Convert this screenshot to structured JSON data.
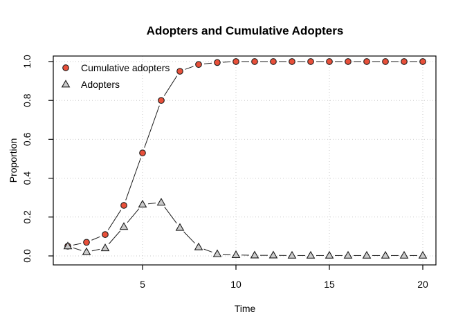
{
  "title": "Adopters and Cumulative Adopters",
  "axes": {
    "x_label": "Time",
    "y_label": "Proportion"
  },
  "legend": {
    "position": "top-left",
    "items": [
      {
        "label": "Cumulative adopters",
        "marker": "circle-icon"
      },
      {
        "label": "Adopters",
        "marker": "triangle-icon"
      }
    ]
  },
  "colors": {
    "cumulative_marker": "#E8503A",
    "adopters_marker": "#CBCBCB",
    "marker_outline": "#1a1a1a",
    "line": "#1a1a1a",
    "grid": "#C9C9C9",
    "background": "#FFFFFF",
    "text": "#000000"
  },
  "chart_data": {
    "type": "line",
    "title": "Adopters and Cumulative Adopters",
    "xlabel": "Time",
    "ylabel": "Proportion",
    "x": [
      1,
      2,
      3,
      4,
      5,
      6,
      7,
      8,
      9,
      10,
      11,
      12,
      13,
      14,
      15,
      16,
      17,
      18,
      19,
      20
    ],
    "series": [
      {
        "name": "Cumulative adopters",
        "marker": "circle",
        "color": "#E8503A",
        "values": [
          0.05,
          0.07,
          0.11,
          0.26,
          0.53,
          0.8,
          0.95,
          0.985,
          0.995,
          1.0,
          1.0,
          1.0,
          1.0,
          1.0,
          1.0,
          1.0,
          1.0,
          1.0,
          1.0,
          1.0
        ]
      },
      {
        "name": "Adopters",
        "marker": "triangle",
        "color": "#CBCBCB",
        "values": [
          0.05,
          0.02,
          0.04,
          0.15,
          0.265,
          0.275,
          0.145,
          0.045,
          0.01,
          0.005,
          0.003,
          0.003,
          0.002,
          0.002,
          0.002,
          0.002,
          0.002,
          0.002,
          0.002,
          0.002
        ]
      }
    ],
    "x_ticks": [
      5,
      10,
      15,
      20
    ],
    "y_ticks": [
      "0.0",
      "0.2",
      "0.4",
      "0.6",
      "0.8",
      "1.0"
    ],
    "xlim": [
      1,
      20
    ],
    "ylim": [
      0,
      1
    ],
    "grid": true,
    "grid_style": "dotted",
    "legend_position": "top-left",
    "point_style": "points-with-line-gaps"
  }
}
